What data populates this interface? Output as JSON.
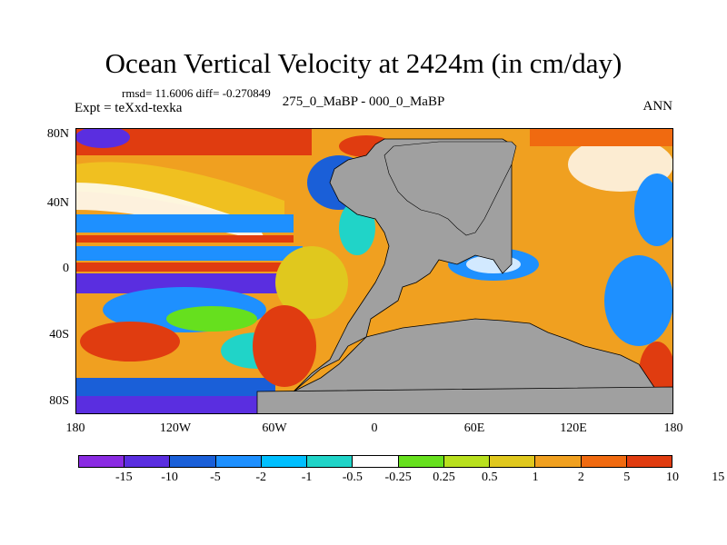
{
  "title": "Ocean Vertical Velocity at 2424m (in cm/day)",
  "stats": "rmsd= 11.6006 diff= -0.270849",
  "expt": "Expt = teXxd-texka",
  "diff_label": "275_0_MaBP - 000_0_MaBP",
  "season": "ANN",
  "map": {
    "y_ticks": [
      "80N",
      "40N",
      "0",
      "40S",
      "80S"
    ],
    "x_ticks": [
      "180",
      "120W",
      "60W",
      "0",
      "60E",
      "120E",
      "180"
    ],
    "land_color": "#a0a0a0"
  },
  "colorbar": {
    "colors": [
      "#8a2be2",
      "#5a2ee0",
      "#1a5fd8",
      "#1e90ff",
      "#00bfff",
      "#20d4c8",
      "#ffffff",
      "#66e01e",
      "#b8e01e",
      "#e0c81e",
      "#f0a020",
      "#f06a10",
      "#e03c10"
    ],
    "labels": [
      "-15",
      "-10",
      "-5",
      "-2",
      "-1",
      "-0.5",
      "-0.25",
      "0.25",
      "0.5",
      "1",
      "2",
      "5",
      "10",
      "15"
    ]
  }
}
